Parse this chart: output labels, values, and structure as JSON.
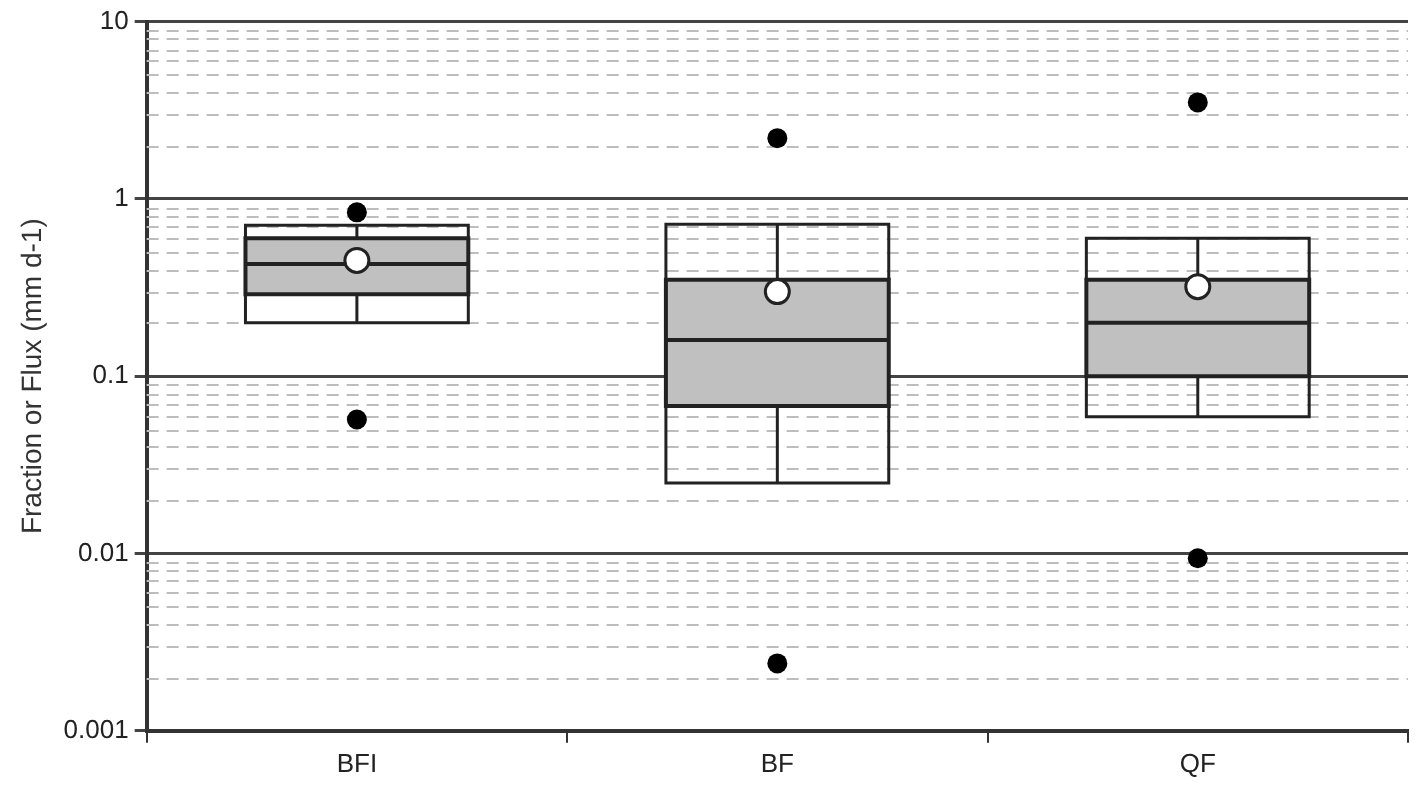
{
  "chart_data": {
    "type": "box",
    "ylabel": "Fraction or Flux (mm d-1)",
    "categories": [
      "BFI",
      "BF",
      "QF"
    ],
    "boxes": [
      {
        "low": 0.2,
        "q1": 0.29,
        "median": 0.43,
        "q3": 0.6,
        "high": 0.71,
        "mean": 0.45,
        "outliers": [
          0.84,
          0.057
        ]
      },
      {
        "low": 0.025,
        "q1": 0.068,
        "median": 0.16,
        "q3": 0.35,
        "high": 0.72,
        "mean": 0.3,
        "outliers": [
          2.2,
          0.0024
        ]
      },
      {
        "low": 0.059,
        "q1": 0.1,
        "median": 0.2,
        "q3": 0.35,
        "high": 0.6,
        "mean": 0.32,
        "outliers": [
          3.5,
          0.0094
        ]
      }
    ],
    "color": "#c0c0c0",
    "log": "y",
    "ylim": [
      0.001,
      10
    ],
    "yticks": [
      0.001,
      0.01,
      0.1,
      1,
      10
    ],
    "grid": "y",
    "legend": false
  }
}
